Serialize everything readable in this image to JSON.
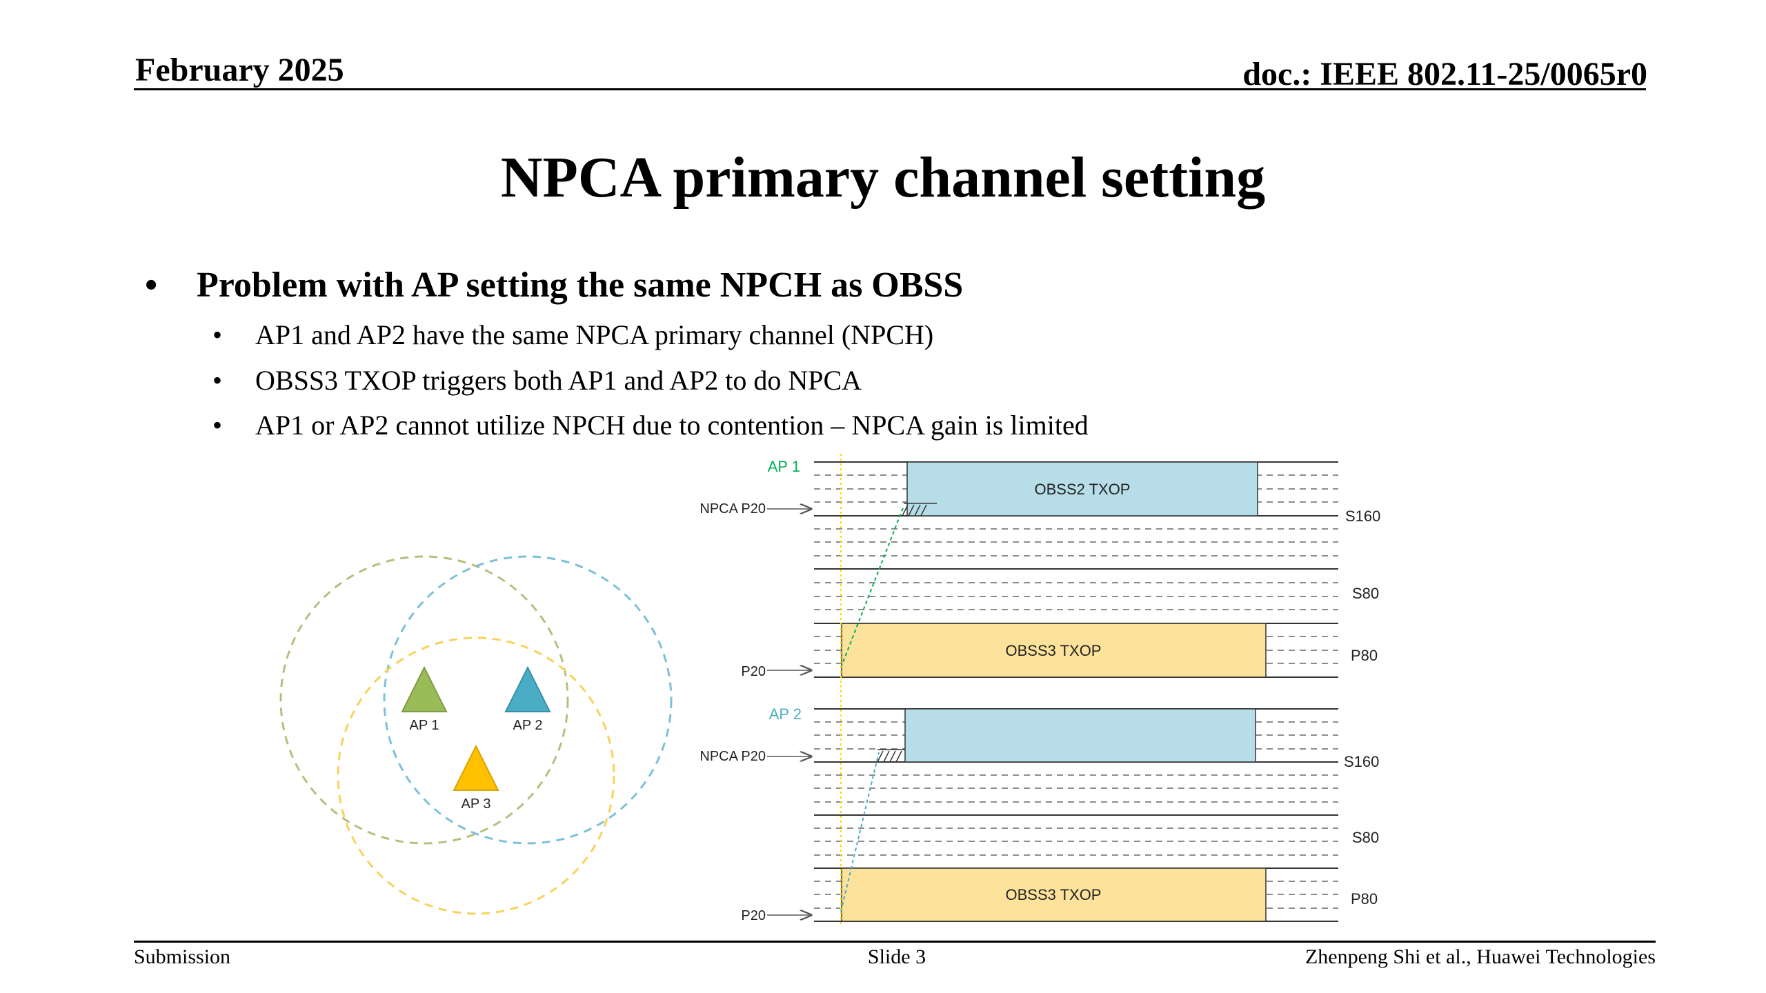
{
  "header": {
    "date": "February 2025",
    "doc": "doc.: IEEE 802.11-25/0065r0"
  },
  "title": "NPCA primary channel setting",
  "bullets": {
    "main": "Problem with AP setting the same NPCH as OBSS",
    "subs": [
      "AP1 and AP2 have the same NPCA primary channel (NPCH)",
      "OBSS3 TXOP triggers both AP1 and AP2 to do NPCA",
      "AP1 or AP2 cannot utilize NPCH due to contention – NPCA gain is limited"
    ]
  },
  "topology": {
    "aps": [
      {
        "label": "AP 1",
        "color": "#9BBB59"
      },
      {
        "label": "AP 2",
        "color": "#4BACC6"
      },
      {
        "label": "AP 3",
        "color": "#FFC000"
      }
    ]
  },
  "timing": {
    "ap1_label": "AP 1",
    "ap2_label": "AP 2",
    "npca_p20": "NPCA P20",
    "p20": "P20",
    "s160": "S160",
    "s80": "S80",
    "p80": "P80",
    "obss2_txop": "OBSS2 TXOP",
    "obss3_txop": "OBSS3 TXOP",
    "colors": {
      "obss2": "#B7DDE8",
      "obss3": "#FCE29A",
      "ap1": "#00B050",
      "ap2": "#4BACC6",
      "trigger": "#FFD700"
    }
  },
  "footer": {
    "left": "Submission",
    "center": "Slide 3",
    "right": "Zhenpeng Shi et al., Huawei Technologies"
  }
}
